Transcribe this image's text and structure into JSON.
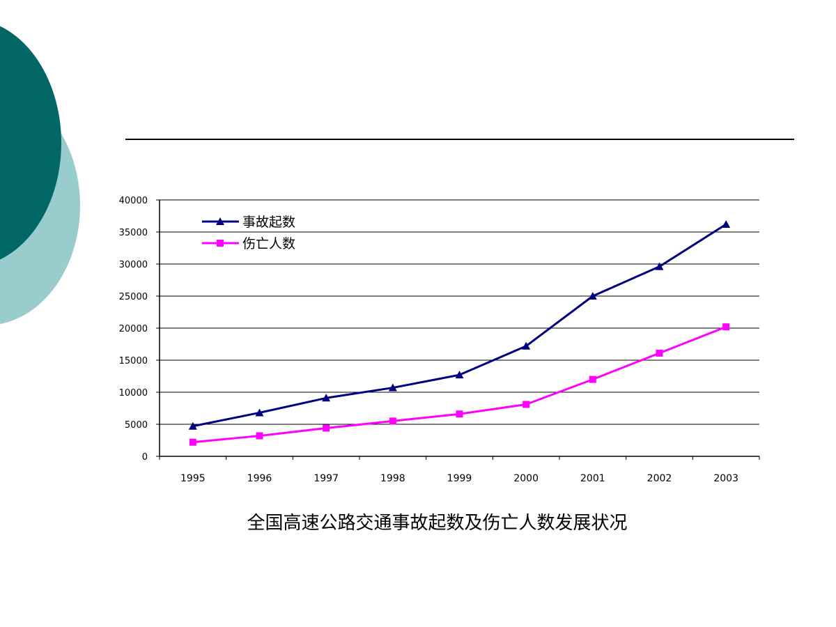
{
  "slide": {
    "caption": "全国高速公路交通事故起数及伤亡人数发展状况",
    "decor_colors": {
      "circle_dark": "#006666",
      "circle_light": "#99CCCC"
    }
  },
  "chart_data": {
    "type": "line",
    "title": "",
    "xlabel": "",
    "ylabel": "",
    "categories": [
      "1995",
      "1996",
      "1997",
      "1998",
      "1999",
      "2000",
      "2001",
      "2002",
      "2003"
    ],
    "ylim": [
      0,
      40000
    ],
    "yticks": [
      0,
      5000,
      10000,
      15000,
      20000,
      25000,
      30000,
      35000,
      40000
    ],
    "grid": true,
    "legend_position": "top-left",
    "series": [
      {
        "name": "事故起数",
        "color": "#000080",
        "marker": "triangle",
        "values": [
          4700,
          6800,
          9100,
          10700,
          12700,
          17200,
          25000,
          29600,
          36200
        ]
      },
      {
        "name": "伤亡人数",
        "color": "#FF00FF",
        "marker": "square",
        "values": [
          2200,
          3200,
          4400,
          5500,
          6600,
          8100,
          12000,
          16100,
          20200
        ]
      }
    ]
  }
}
